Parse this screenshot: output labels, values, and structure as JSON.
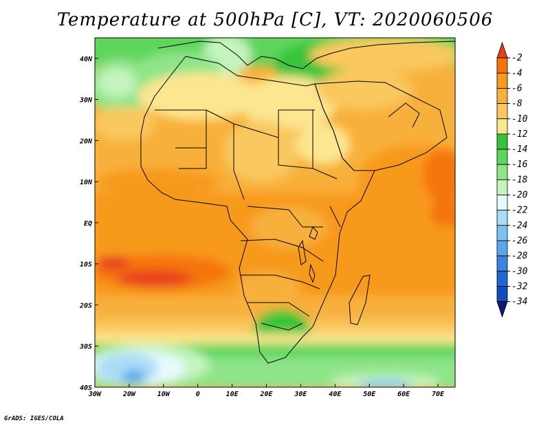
{
  "title": "Temperature at 500hPa [C], VT: 2020060506",
  "credit": "GrADS: IGES/COLA",
  "map": {
    "region": "Africa",
    "lon_range": [
      -30,
      75
    ],
    "lat_range": [
      -40,
      45
    ],
    "lon_ticks": [
      {
        "v": -30,
        "label": "30W"
      },
      {
        "v": -20,
        "label": "20W"
      },
      {
        "v": -10,
        "label": "10W"
      },
      {
        "v": 0,
        "label": "0"
      },
      {
        "v": 10,
        "label": "10E"
      },
      {
        "v": 20,
        "label": "20E"
      },
      {
        "v": 30,
        "label": "30E"
      },
      {
        "v": 40,
        "label": "40E"
      },
      {
        "v": 50,
        "label": "50E"
      },
      {
        "v": 60,
        "label": "60E"
      },
      {
        "v": 70,
        "label": "70E"
      }
    ],
    "lat_ticks": [
      {
        "v": 40,
        "label": "40N"
      },
      {
        "v": 30,
        "label": "30N"
      },
      {
        "v": 20,
        "label": "20N"
      },
      {
        "v": 10,
        "label": "10N"
      },
      {
        "v": 0,
        "label": "EQ"
      },
      {
        "v": -10,
        "label": "10S"
      },
      {
        "v": -20,
        "label": "20S"
      },
      {
        "v": -30,
        "label": "30S"
      },
      {
        "v": -40,
        "label": "40S"
      }
    ]
  },
  "colorbar": {
    "levels": [
      -2,
      -4,
      -6,
      -8,
      -10,
      -12,
      -14,
      -16,
      -18,
      -20,
      -22,
      -24,
      -26,
      -28,
      -30,
      -32,
      -34
    ],
    "colors": [
      "#e8401a",
      "#f5740f",
      "#f79a1e",
      "#f8b03c",
      "#f9c85e",
      "#fce690",
      "#38c43a",
      "#5ed55c",
      "#8fe489",
      "#c4f4bd",
      "#e6fafe",
      "#a9dcf6",
      "#7ec2f2",
      "#5aa6ea",
      "#3b86df",
      "#2366cf",
      "#134dbc",
      "#0d1c72"
    ]
  }
}
